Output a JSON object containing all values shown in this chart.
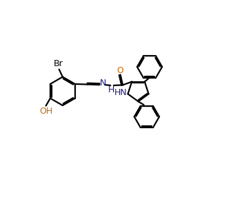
{
  "background_color": "#ffffff",
  "line_color": "#000000",
  "Br_color": "#000000",
  "OH_color": "#cc6600",
  "O_color": "#cc6600",
  "N_color": "#1a1a8c",
  "HN_color": "#1a1a8c",
  "bond_lw": 1.6,
  "figsize": [
    3.57,
    2.99
  ],
  "dpi": 100,
  "xlim": [
    0,
    9.5
  ],
  "ylim": [
    0.5,
    8.5
  ]
}
